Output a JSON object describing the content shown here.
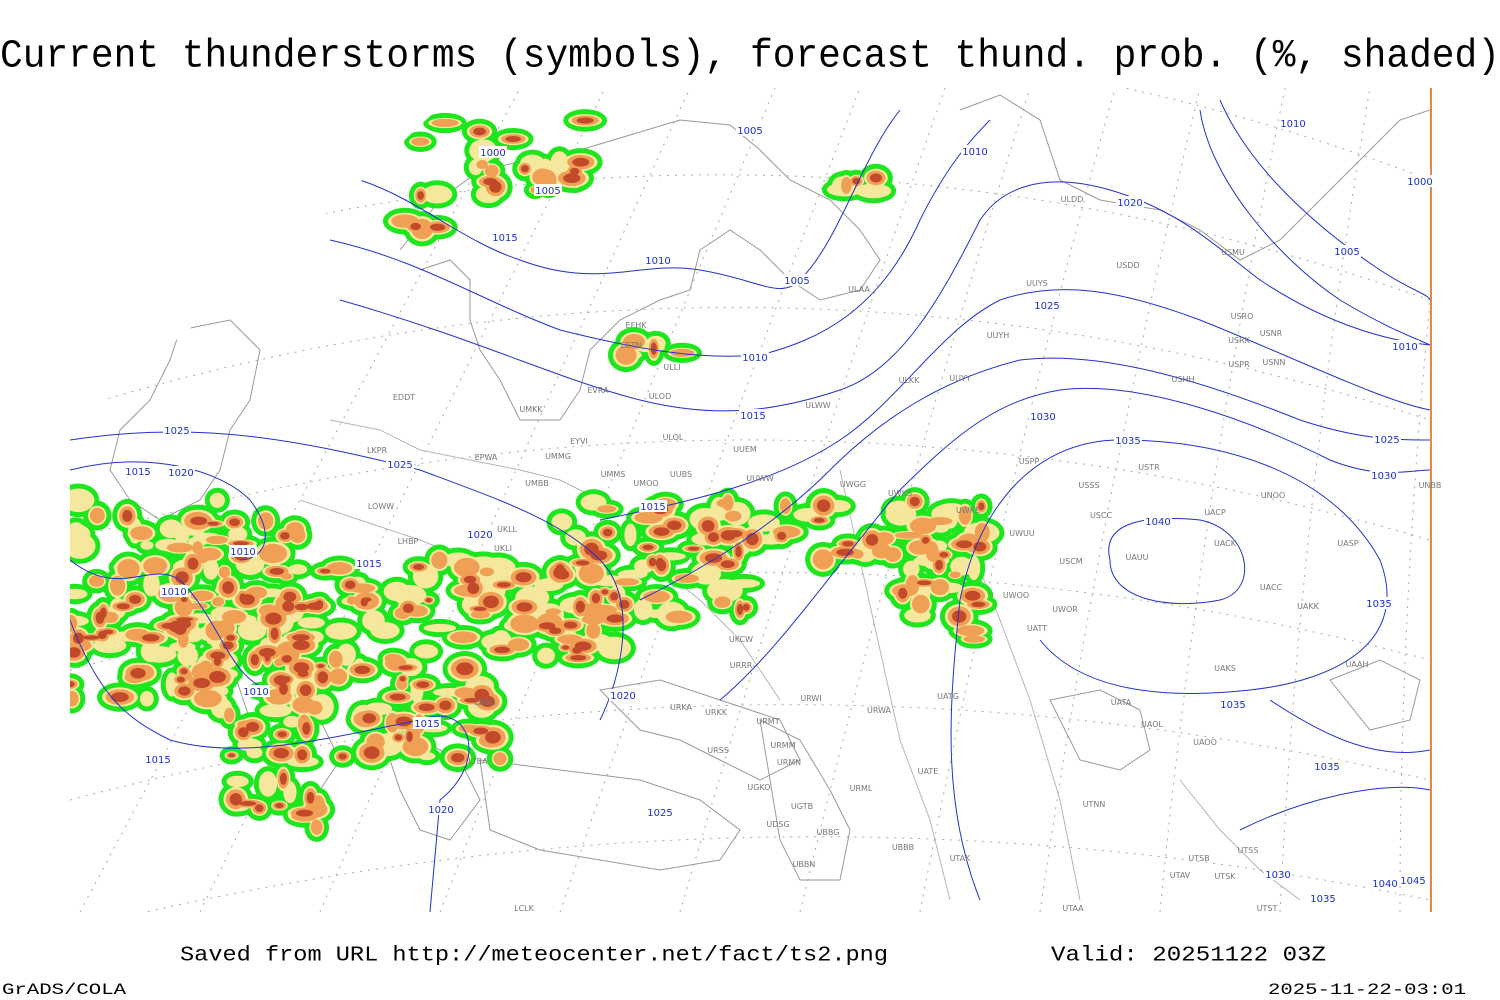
{
  "title": "Current thunderstorms (symbols), forecast thund. prob. (%, shaded)",
  "footer": {
    "saved": "Saved from URL http://meteocenter.net/fact/ts2.png",
    "valid": "Valid: 20251122 03Z",
    "software": "GrADS/COLA",
    "timestamp": "2025-11-22-03:01"
  },
  "isobar_labels": [
    "1000",
    "1005",
    "1005",
    "1010",
    "1010",
    "1000",
    "1020",
    "1015",
    "1010",
    "1005",
    "1005",
    "1025",
    "1010",
    "1010",
    "1015",
    "1030",
    "1025",
    "1025",
    "1035",
    "1025",
    "1015",
    "1020",
    "1030",
    "1015",
    "1020",
    "1040",
    "1010",
    "1015",
    "1010",
    "1035",
    "1010",
    "1020",
    "1035",
    "1015",
    "1015",
    "1035",
    "1020",
    "1025",
    "1030",
    "1040",
    "1045",
    "1035"
  ],
  "stations": [
    "ULDD",
    "USDD",
    "USMU",
    "ULAA",
    "UUYS",
    "UUYH",
    "USRO",
    "USNR",
    "USRK",
    "USPR",
    "USNN",
    "USHH",
    "ULKK",
    "UUYY",
    "EFHK",
    "EETN",
    "ULLI",
    "EVRA",
    "ULOD",
    "ULWW",
    "EDDT",
    "UMKK",
    "ULOL",
    "EYVI",
    "UUEM",
    "LKPR",
    "EPWA",
    "UMMG",
    "UMMS",
    "UUBS",
    "UMOO",
    "UUWW",
    "USPP",
    "USTR",
    "UMBB",
    "UWGG",
    "UWKS",
    "USSS",
    "UNOO",
    "UNBB",
    "LOWW",
    "UWKE",
    "UACP",
    "USCC",
    "UKLL",
    "UWUU",
    "UKLI",
    "LHBP",
    "UACK",
    "UASP",
    "UAUU",
    "USCM",
    "UACC",
    "UWOO",
    "UWOR",
    "UAKK",
    "UATT",
    "UKCW",
    "URRR",
    "UAKS",
    "UAAH",
    "LBBG",
    "URWI",
    "UATG",
    "URKA",
    "URKK",
    "URWA",
    "UAOL",
    "UATA",
    "URMT",
    "URMM",
    "URSS",
    "UATE",
    "URMN",
    "UAOO",
    "LTBA",
    "UGKO",
    "UGTB",
    "URML",
    "UTNN",
    "UDSG",
    "UBBG",
    "UBBB",
    "UTAK",
    "UBBN",
    "UTSS",
    "UTSB",
    "UTAV",
    "UTSK",
    "UTAA",
    "UTST",
    "LCLK"
  ]
}
